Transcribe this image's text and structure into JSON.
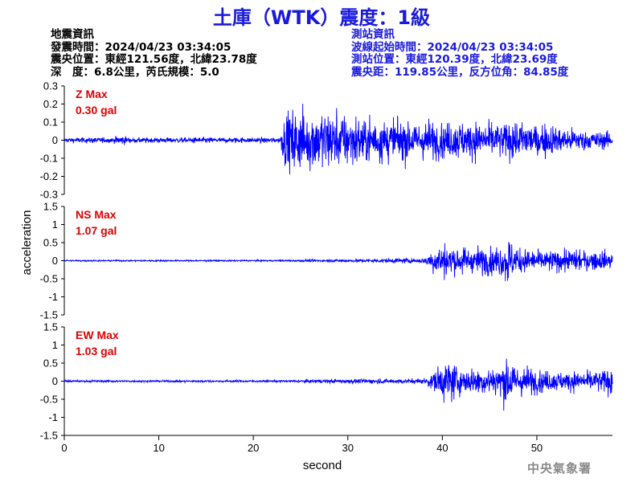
{
  "title": "土庫（WTK）震度：1級",
  "event_info": {
    "heading": "地震資訊",
    "origin_time": "發震時間：2024/04/23 03:34:05",
    "epicenter": "震央位置：東經121.56度，北緯23.78度",
    "depth_magnitude": "深　度：6.8公里，芮氏規模：5.0"
  },
  "station_info": {
    "heading": "測站資訊",
    "wave_start": "波線起始時間：2024/04/23 03:34:05",
    "location": "測站位置：東經120.39度，北緯23.69度",
    "distance": "震央距：119.85公里，反方位角：84.85度"
  },
  "agency": "中央氣象署",
  "colors": {
    "title": "#1a1adc",
    "trace": "#0000ff",
    "max_label": "#e00000"
  },
  "chart_data": {
    "type": "line",
    "xlabel": "second",
    "ylabel": "acceleration",
    "xlim": [
      0,
      58
    ],
    "x_ticks": [
      0,
      10,
      20,
      30,
      40,
      50
    ],
    "grid": false,
    "panels": [
      {
        "name": "Z Max",
        "max_label": "0.30 gal",
        "ylim": [
          -0.3,
          0.3
        ],
        "y_ticks": [
          0.3,
          0.2,
          0.1,
          0,
          -0.1,
          -0.2,
          -0.3
        ],
        "y_tick_labels": [
          "0.3",
          "0.2",
          "0.1",
          "0",
          "-0.1",
          "-0.2",
          "-0.3"
        ],
        "envelope": [
          [
            0,
            0.02
          ],
          [
            5,
            0.02
          ],
          [
            6,
            0.04
          ],
          [
            7,
            0.02
          ],
          [
            22.8,
            0.02
          ],
          [
            23.3,
            0.2
          ],
          [
            25,
            0.26
          ],
          [
            28,
            0.22
          ],
          [
            32,
            0.18
          ],
          [
            36,
            0.16
          ],
          [
            40,
            0.14
          ],
          [
            46,
            0.14
          ],
          [
            48,
            0.16
          ],
          [
            52,
            0.1
          ],
          [
            55,
            0.08
          ],
          [
            58,
            0.06
          ]
        ]
      },
      {
        "name": "NS Max",
        "max_label": "1.07 gal",
        "ylim": [
          -1.5,
          1.5
        ],
        "y_ticks": [
          1.5,
          1,
          0.5,
          0,
          -0.5,
          -1,
          -1.5
        ],
        "y_tick_labels": [
          "1.5",
          "1",
          "0.5",
          "0",
          "-0.5",
          "-1",
          "-1.5"
        ],
        "envelope": [
          [
            0,
            0.03
          ],
          [
            22,
            0.03
          ],
          [
            30,
            0.06
          ],
          [
            38,
            0.1
          ],
          [
            39,
            0.55
          ],
          [
            40,
            0.7
          ],
          [
            43,
            0.5
          ],
          [
            46.5,
            0.6
          ],
          [
            47,
            1.05
          ],
          [
            47.5,
            0.6
          ],
          [
            50,
            0.4
          ],
          [
            55,
            0.4
          ],
          [
            58,
            0.35
          ]
        ]
      },
      {
        "name": "EW Max",
        "max_label": "1.03 gal",
        "ylim": [
          -1.5,
          1.5
        ],
        "y_ticks": [
          1.5,
          1,
          0.5,
          0,
          -0.5,
          -1,
          -1.5
        ],
        "y_tick_labels": [
          "1.5",
          "1",
          "0.5",
          "0",
          "-0.5",
          "-1",
          "-1.5"
        ],
        "envelope": [
          [
            0,
            0.04
          ],
          [
            22,
            0.04
          ],
          [
            30,
            0.08
          ],
          [
            38,
            0.1
          ],
          [
            39,
            0.35
          ],
          [
            40.5,
            0.9
          ],
          [
            42,
            0.5
          ],
          [
            46,
            0.6
          ],
          [
            47,
            1.03
          ],
          [
            48,
            0.6
          ],
          [
            52,
            0.35
          ],
          [
            56,
            0.4
          ],
          [
            58,
            0.55
          ]
        ]
      }
    ]
  }
}
